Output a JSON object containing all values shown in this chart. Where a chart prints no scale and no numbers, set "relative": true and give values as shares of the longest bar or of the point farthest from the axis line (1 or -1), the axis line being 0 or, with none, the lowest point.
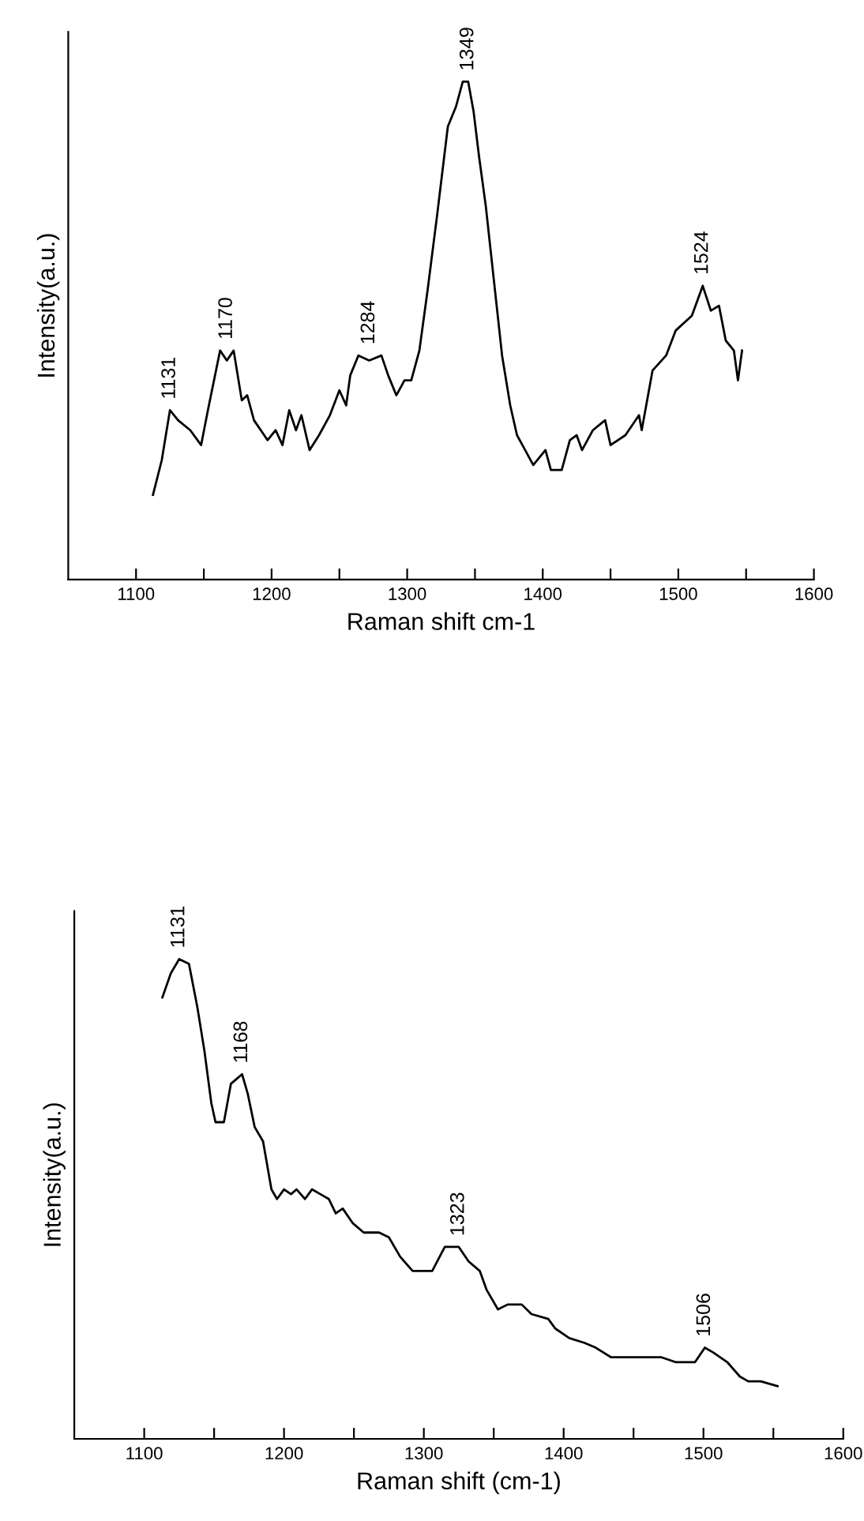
{
  "chart_data": [
    {
      "type": "line",
      "relative": true,
      "xlabel": "Raman shift cm-1",
      "ylabel": "Intensity(a.u.)",
      "xlim": [
        1050,
        1600
      ],
      "xticks": [
        1100,
        {
          "value": 1150,
          "label": null
        },
        1200,
        {
          "value": 1250,
          "label": null
        },
        1300,
        {
          "value": 1350,
          "label": null
        },
        1400,
        {
          "value": 1450,
          "label": null
        },
        1500,
        {
          "value": 1550,
          "label": null
        },
        1600
      ],
      "tick_labels": "x",
      "grid": false,
      "color": "#000000",
      "x": [
        1112.5,
        1119,
        1125,
        1131,
        1140,
        1148,
        1153,
        1162,
        1167,
        1172,
        1178,
        1182,
        1187,
        1197,
        1203,
        1208,
        1213,
        1218,
        1222,
        1228,
        1235,
        1243,
        1250,
        1255,
        1258,
        1264,
        1272,
        1281,
        1286,
        1292,
        1298,
        1303,
        1309,
        1315,
        1322,
        1330,
        1336,
        1341,
        1345,
        1349,
        1353,
        1358,
        1364,
        1370,
        1376,
        1381,
        1387,
        1393,
        1402,
        1406,
        1414,
        1420,
        1425,
        1429,
        1437,
        1446,
        1450,
        1461,
        1471,
        1473,
        1481,
        1491,
        1498,
        1510,
        1518,
        1524,
        1530,
        1535,
        1541,
        1544,
        1547
      ],
      "values": [
        0.17,
        0.24,
        0.34,
        0.32,
        0.3,
        0.27,
        0.34,
        0.46,
        0.44,
        0.46,
        0.36,
        0.37,
        0.32,
        0.28,
        0.3,
        0.27,
        0.34,
        0.3,
        0.33,
        0.26,
        0.29,
        0.33,
        0.38,
        0.35,
        0.41,
        0.45,
        0.44,
        0.45,
        0.41,
        0.37,
        0.4,
        0.4,
        0.46,
        0.58,
        0.73,
        0.91,
        0.95,
        1.0,
        1.0,
        0.94,
        0.85,
        0.75,
        0.6,
        0.45,
        0.35,
        0.29,
        0.26,
        0.23,
        0.26,
        0.22,
        0.22,
        0.28,
        0.29,
        0.26,
        0.3,
        0.32,
        0.27,
        0.29,
        0.33,
        0.3,
        0.42,
        0.45,
        0.5,
        0.53,
        0.59,
        0.54,
        0.55,
        0.48,
        0.46,
        0.4,
        0.46
      ],
      "annotations": [
        {
          "text": "1131",
          "x": 1125,
          "y": 0.34
        },
        {
          "text": "1170",
          "x": 1167,
          "y": 0.46
        },
        {
          "text": "1284",
          "x": 1272,
          "y": 0.45
        },
        {
          "text": "1349",
          "x": 1345,
          "y": 1.0
        },
        {
          "text": "1524",
          "x": 1518,
          "y": 0.59
        }
      ]
    },
    {
      "type": "line",
      "relative": true,
      "xlabel": "Raman shift (cm-1)",
      "ylabel": "Intensity(a.u.)",
      "xlim": [
        1050,
        1600
      ],
      "xticks": [
        1100,
        {
          "value": 1150,
          "label": null
        },
        1200,
        {
          "value": 1250,
          "label": null
        },
        1300,
        {
          "value": 1350,
          "label": null
        },
        1400,
        {
          "value": 1450,
          "label": null
        },
        1500,
        {
          "value": 1550,
          "label": null
        },
        1600
      ],
      "tick_labels": "x",
      "grid": false,
      "color": "#000000",
      "x": [
        1113,
        1119,
        1125,
        1132,
        1138,
        1143,
        1148,
        1151,
        1157,
        1162,
        1166,
        1170,
        1174,
        1179,
        1185,
        1191,
        1195,
        1200,
        1205,
        1209,
        1215,
        1220,
        1226,
        1232,
        1237,
        1242,
        1249,
        1257,
        1268,
        1275,
        1283,
        1292,
        1302,
        1306,
        1315,
        1325,
        1332,
        1340,
        1345,
        1353,
        1360,
        1370,
        1377,
        1389,
        1394,
        1404,
        1415,
        1423,
        1434,
        1445,
        1457,
        1470,
        1480,
        1485,
        1494,
        1501,
        1507,
        1517,
        1526,
        1532,
        1541,
        1553
      ],
      "values": [
        0.92,
        0.97,
        1.0,
        0.99,
        0.9,
        0.81,
        0.7,
        0.66,
        0.66,
        0.74,
        0.75,
        0.76,
        0.72,
        0.65,
        0.62,
        0.52,
        0.5,
        0.52,
        0.51,
        0.52,
        0.5,
        0.52,
        0.51,
        0.5,
        0.47,
        0.48,
        0.45,
        0.43,
        0.43,
        0.42,
        0.38,
        0.35,
        0.35,
        0.35,
        0.4,
        0.4,
        0.37,
        0.35,
        0.31,
        0.27,
        0.28,
        0.28,
        0.26,
        0.25,
        0.23,
        0.21,
        0.2,
        0.19,
        0.17,
        0.17,
        0.17,
        0.17,
        0.16,
        0.16,
        0.16,
        0.19,
        0.18,
        0.16,
        0.13,
        0.12,
        0.12,
        0.11
      ],
      "annotations": [
        {
          "text": "1131",
          "x": 1125,
          "y": 1.0
        },
        {
          "text": "1168",
          "x": 1170,
          "y": 0.76
        },
        {
          "text": "1323",
          "x": 1325,
          "y": 0.4
        },
        {
          "text": "1506",
          "x": 1501,
          "y": 0.19
        }
      ]
    }
  ]
}
